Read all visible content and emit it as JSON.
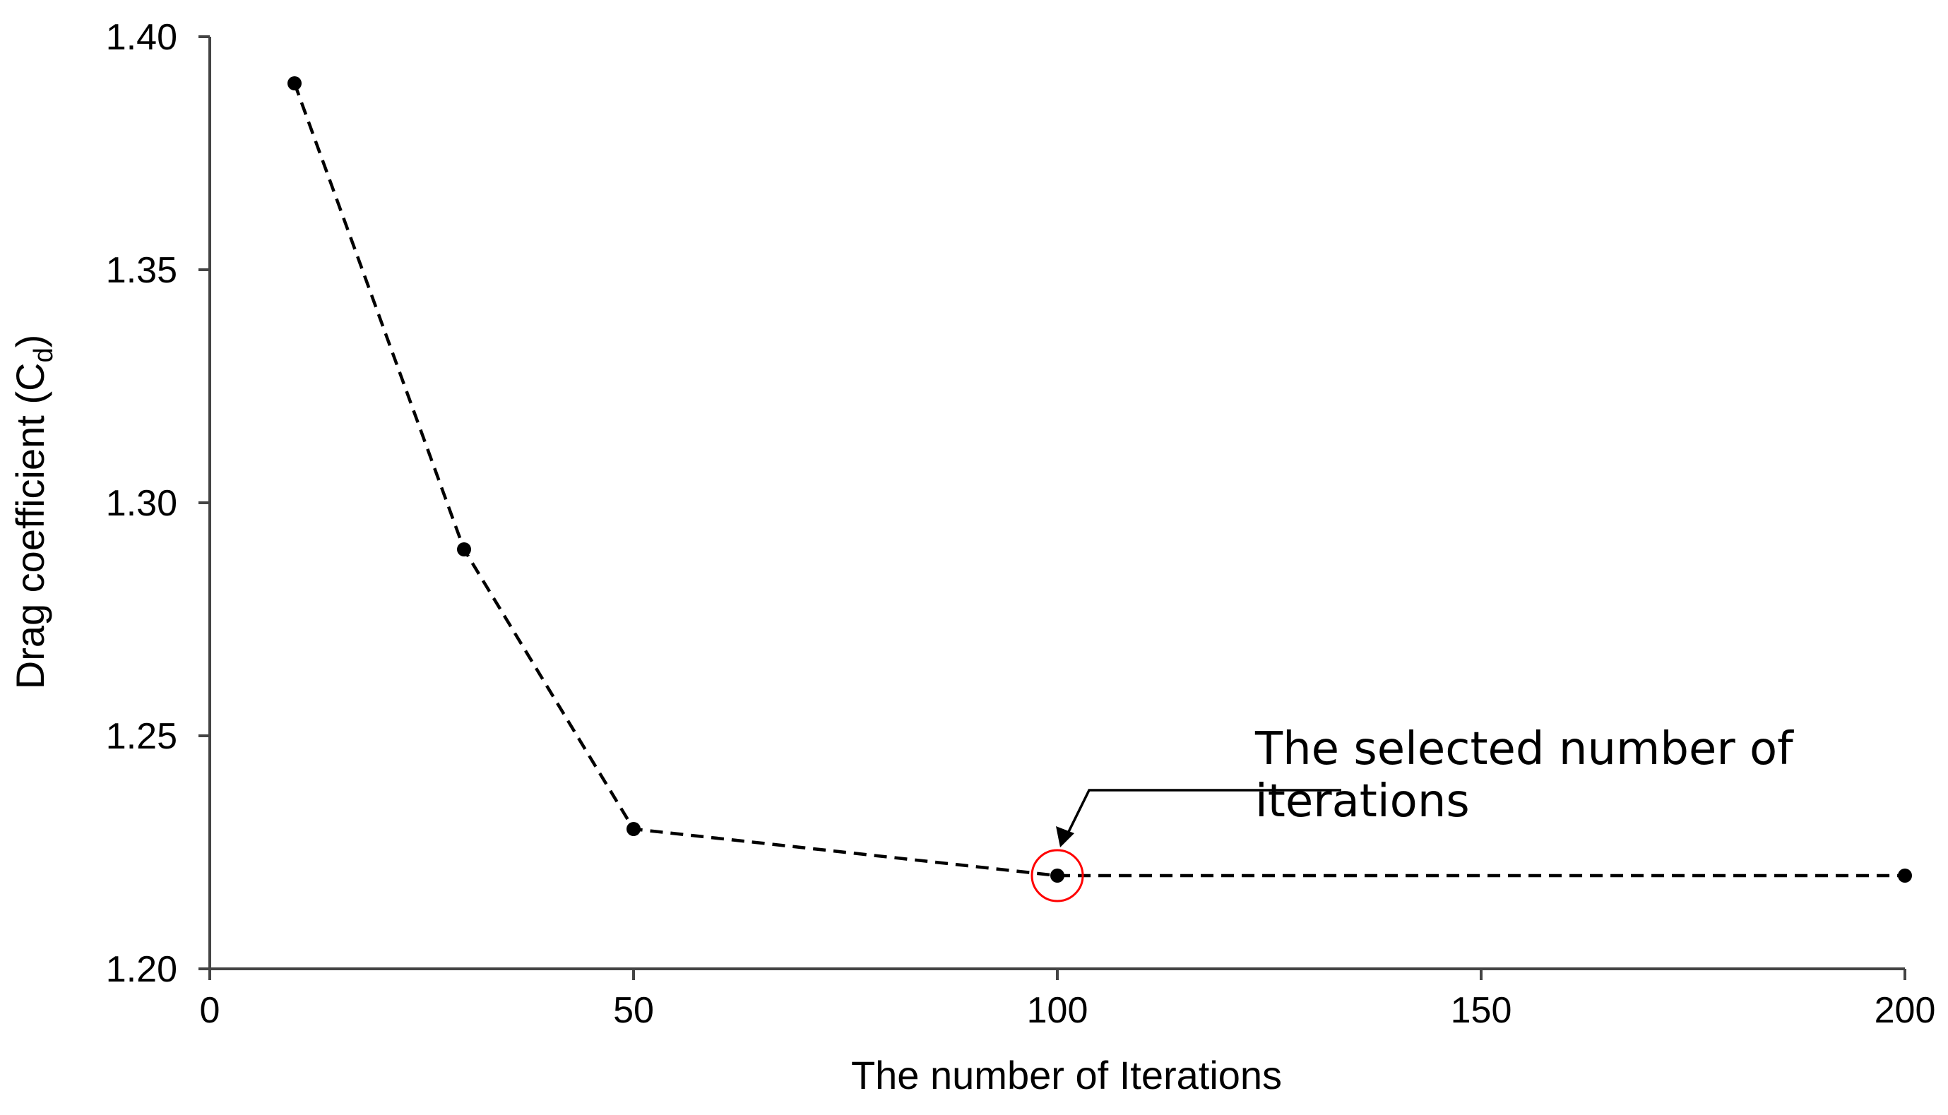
{
  "chart_data": {
    "type": "line",
    "title": "",
    "xlabel": "The number of Iterations",
    "ylabel": {
      "text": "Drag coefficient (C",
      "subscript": "d",
      "suffix": ")"
    },
    "xlim": [
      0,
      200
    ],
    "ylim": [
      1.2,
      1.4
    ],
    "x_ticks": [
      "0",
      "50",
      "100",
      "150",
      "200"
    ],
    "x_tick_values": [
      0,
      50,
      100,
      150,
      200
    ],
    "y_ticks": [
      "1.20",
      "1.25",
      "1.30",
      "1.35",
      "1.40"
    ],
    "y_tick_values": [
      1.2,
      1.25,
      1.3,
      1.35,
      1.4
    ],
    "grid": false,
    "legend": "none",
    "series": [
      {
        "line_style": "dashed",
        "marker": "circle",
        "color": "#000000",
        "x": [
          10,
          30,
          50,
          100,
          200
        ],
        "y": [
          1.39,
          1.29,
          1.23,
          1.22,
          1.22
        ]
      }
    ],
    "annotations": [
      {
        "text_lines": [
          "The selected number of",
          "iterations"
        ],
        "target_x": 100,
        "target_y": 1.22,
        "highlight_color": "#ff0000"
      }
    ]
  }
}
